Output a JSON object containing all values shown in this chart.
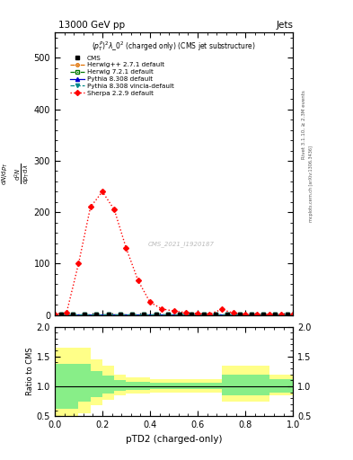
{
  "title_left": "13000 GeV pp",
  "title_right": "Jets",
  "subtitle": "$(p_T^P)^2\\lambda\\_0^2$ (charged only) (CMS jet substructure)",
  "watermark": "CMS_2021_I1920187",
  "rivet_label": "Rivet 3.1.10, ≥ 2.3M events",
  "arxiv_label": "mcplots.cern.ch [arXiv:1306.3436]",
  "xlabel": "pTD2 (charged-only)",
  "ylabel_ratio": "Ratio to CMS",
  "ylim_main": [
    0,
    550
  ],
  "ylim_ratio": [
    0.5,
    2.0
  ],
  "yticks_main": [
    0,
    100,
    200,
    300,
    400,
    500
  ],
  "yticks_ratio": [
    0.5,
    1.0,
    1.5,
    2.0
  ],
  "xlim": [
    0,
    1
  ],
  "sherpa_x": [
    0.0,
    0.05,
    0.1,
    0.15,
    0.2,
    0.25,
    0.3,
    0.35,
    0.4,
    0.45,
    0.5,
    0.55,
    0.6,
    0.65,
    0.7,
    0.75,
    0.8,
    0.85,
    0.9,
    0.95,
    1.0
  ],
  "sherpa_y": [
    2,
    5,
    100,
    210,
    240,
    205,
    130,
    67,
    25,
    12,
    8,
    5,
    3,
    2,
    11,
    4,
    2,
    1,
    1,
    0.5,
    0.5
  ],
  "flat_x": [
    0.025,
    0.075,
    0.125,
    0.175,
    0.225,
    0.275,
    0.325,
    0.375,
    0.425,
    0.475,
    0.525,
    0.575,
    0.625,
    0.675,
    0.725,
    0.775,
    0.825,
    0.875,
    0.925,
    0.975
  ],
  "flat_y": [
    2,
    2,
    2,
    2,
    2,
    2,
    2,
    2,
    2,
    2,
    2,
    2,
    2,
    2,
    2,
    2,
    2,
    2,
    2,
    2
  ],
  "ratio_edges": [
    0.0,
    0.05,
    0.1,
    0.15,
    0.2,
    0.25,
    0.3,
    0.35,
    0.4,
    0.45,
    0.5,
    0.55,
    0.6,
    0.65,
    0.7,
    0.75,
    0.8,
    0.85,
    0.9,
    0.95,
    1.0
  ],
  "ratio_yellow_lo": [
    0.47,
    0.47,
    0.55,
    0.68,
    0.78,
    0.85,
    0.88,
    0.88,
    0.9,
    0.9,
    0.9,
    0.9,
    0.9,
    0.9,
    0.75,
    0.75,
    0.75,
    0.75,
    0.85,
    0.85,
    0.85
  ],
  "ratio_yellow_hi": [
    1.65,
    1.65,
    1.65,
    1.45,
    1.35,
    1.2,
    1.15,
    1.15,
    1.12,
    1.12,
    1.12,
    1.12,
    1.12,
    1.12,
    1.35,
    1.35,
    1.35,
    1.35,
    1.2,
    1.2,
    1.2
  ],
  "ratio_green_lo": [
    0.62,
    0.62,
    0.75,
    0.82,
    0.88,
    0.92,
    0.94,
    0.94,
    0.95,
    0.95,
    0.95,
    0.95,
    0.95,
    0.95,
    0.85,
    0.85,
    0.85,
    0.85,
    0.9,
    0.9,
    0.9
  ],
  "ratio_green_hi": [
    1.38,
    1.38,
    1.38,
    1.25,
    1.18,
    1.1,
    1.08,
    1.08,
    1.06,
    1.06,
    1.06,
    1.06,
    1.06,
    1.06,
    1.2,
    1.2,
    1.2,
    1.2,
    1.12,
    1.12,
    1.12
  ],
  "color_sherpa": "#ff0000",
  "color_herwig": "#e07000",
  "color_herwig72": "#007700",
  "color_pythia": "#0000cc",
  "color_pythia_vincia": "#008888",
  "color_yellow": "#ffff88",
  "color_green": "#88ee88",
  "bg": "#ffffff"
}
